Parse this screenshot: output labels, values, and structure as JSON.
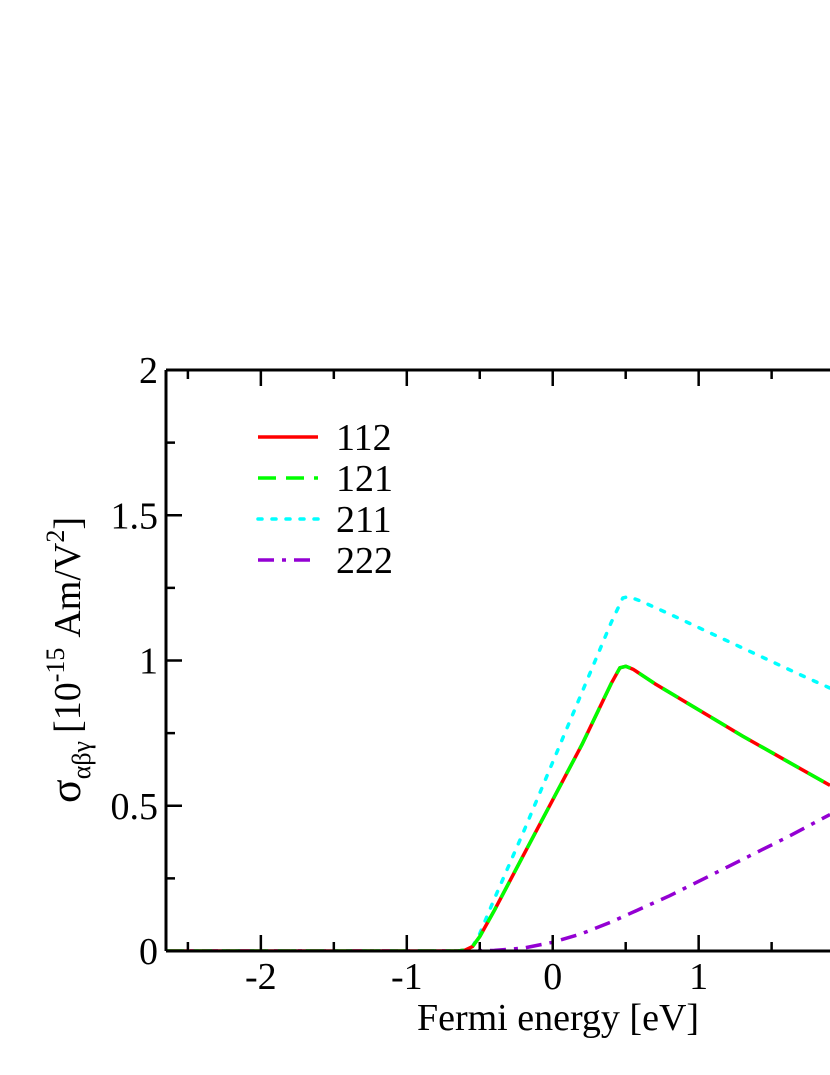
{
  "chart_data": {
    "type": "line",
    "xlabel": "Fermi energy [eV]",
    "ylabel": {
      "sigma": "σ",
      "subscript": "αβγ",
      "pre": "[10",
      "exp": "-15",
      "unit": "Am/V",
      "unit_exp": "2",
      "post": "]"
    },
    "xlim": [
      -2.65,
      1.9
    ],
    "ylim": [
      0,
      2
    ],
    "xticks": [
      {
        "value": -2,
        "label": "-2"
      },
      {
        "value": -1,
        "label": "-1"
      },
      {
        "value": 0,
        "label": "0"
      },
      {
        "value": 1,
        "label": "1"
      }
    ],
    "yticks": [
      {
        "value": 0,
        "label": "0"
      },
      {
        "value": 0.5,
        "label": "0.5"
      },
      {
        "value": 1,
        "label": "1"
      },
      {
        "value": 1.5,
        "label": "1.5"
      },
      {
        "value": 2,
        "label": "2"
      }
    ],
    "legend_position": "top-left",
    "grid": false,
    "series": [
      {
        "name": "112",
        "color": "#ff0000",
        "dash": "solid",
        "x": [
          -2.65,
          -0.65,
          -0.6,
          -0.55,
          -0.5,
          -0.4,
          -0.2,
          0.0,
          0.2,
          0.4,
          0.46,
          0.5,
          0.55,
          0.7,
          1.0,
          1.3,
          1.6,
          1.9
        ],
        "y": [
          0,
          0,
          0.003,
          0.015,
          0.05,
          0.14,
          0.33,
          0.52,
          0.71,
          0.92,
          0.975,
          0.98,
          0.97,
          0.92,
          0.83,
          0.74,
          0.655,
          0.57
        ]
      },
      {
        "name": "121",
        "color": "#00ff00",
        "dash": "dashed",
        "x": [
          -2.65,
          -0.65,
          -0.6,
          -0.55,
          -0.5,
          -0.4,
          -0.2,
          0.0,
          0.2,
          0.4,
          0.46,
          0.5,
          0.55,
          0.7,
          1.0,
          1.3,
          1.6,
          1.9
        ],
        "y": [
          0,
          0,
          0.003,
          0.015,
          0.05,
          0.14,
          0.33,
          0.52,
          0.71,
          0.92,
          0.975,
          0.98,
          0.97,
          0.92,
          0.83,
          0.74,
          0.655,
          0.57
        ]
      },
      {
        "name": "211",
        "color": "#00ffff",
        "dash": "dotted",
        "x": [
          -2.65,
          -0.65,
          -0.6,
          -0.55,
          -0.5,
          -0.4,
          -0.2,
          0.0,
          0.2,
          0.4,
          0.48,
          0.52,
          0.6,
          0.8,
          1.1,
          1.4,
          1.7,
          1.9
        ],
        "y": [
          0,
          0,
          0.003,
          0.015,
          0.06,
          0.18,
          0.41,
          0.65,
          0.89,
          1.13,
          1.215,
          1.22,
          1.205,
          1.16,
          1.09,
          1.02,
          0.95,
          0.905
        ]
      },
      {
        "name": "222",
        "color": "#9400d3",
        "dash": "dashdot",
        "x": [
          -2.65,
          -0.6,
          -0.4,
          -0.2,
          0.0,
          0.2,
          0.4,
          0.6,
          0.8,
          1.0,
          1.2,
          1.4,
          1.6,
          1.9
        ],
        "y": [
          0,
          0,
          0.002,
          0.01,
          0.03,
          0.06,
          0.1,
          0.145,
          0.19,
          0.24,
          0.29,
          0.34,
          0.39,
          0.47
        ]
      }
    ]
  }
}
